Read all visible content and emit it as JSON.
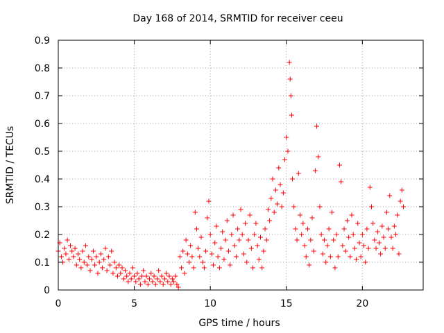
{
  "chart_data": {
    "type": "scatter",
    "title": "Day 168 of 2014, SRMTID for receiver ceeu",
    "xlabel": "GPS time / hours",
    "ylabel": "SRMTID / TECUs",
    "xlim": [
      0,
      24
    ],
    "ylim": [
      0,
      0.9
    ],
    "xticks": [
      0,
      5,
      10,
      15,
      20
    ],
    "xtick_labels": [
      "0",
      "5",
      "10",
      "15",
      "20"
    ],
    "yticks": [
      0,
      0.1,
      0.2,
      0.3,
      0.4,
      0.5,
      0.6,
      0.7,
      0.8,
      0.9
    ],
    "ytick_labels": [
      "0",
      "0.1",
      "0.2",
      "0.3",
      "0.4",
      "0.5",
      "0.6",
      "0.7",
      "0.8",
      "0.9"
    ],
    "grid": true,
    "marker": "+",
    "series": [
      {
        "name": "SRMTID",
        "color": "#ff0000",
        "points": [
          [
            0.0,
            0.14
          ],
          [
            0.1,
            0.17
          ],
          [
            0.2,
            0.12
          ],
          [
            0.3,
            0.1
          ],
          [
            0.4,
            0.15
          ],
          [
            0.5,
            0.13
          ],
          [
            0.6,
            0.18
          ],
          [
            0.7,
            0.11
          ],
          [
            0.8,
            0.16
          ],
          [
            0.9,
            0.14
          ],
          [
            1.0,
            0.12
          ],
          [
            1.1,
            0.15
          ],
          [
            1.2,
            0.09
          ],
          [
            1.3,
            0.13
          ],
          [
            1.4,
            0.11
          ],
          [
            1.5,
            0.08
          ],
          [
            1.6,
            0.14
          ],
          [
            1.7,
            0.1
          ],
          [
            1.8,
            0.16
          ],
          [
            1.9,
            0.09
          ],
          [
            2.0,
            0.12
          ],
          [
            2.1,
            0.07
          ],
          [
            2.2,
            0.11
          ],
          [
            2.3,
            0.14
          ],
          [
            2.4,
            0.09
          ],
          [
            2.5,
            0.12
          ],
          [
            2.6,
            0.06
          ],
          [
            2.7,
            0.1
          ],
          [
            2.8,
            0.13
          ],
          [
            2.9,
            0.08
          ],
          [
            3.0,
            0.11
          ],
          [
            3.1,
            0.15
          ],
          [
            3.2,
            0.07
          ],
          [
            3.3,
            0.12
          ],
          [
            3.4,
            0.09
          ],
          [
            3.5,
            0.14
          ],
          [
            3.6,
            0.06
          ],
          [
            3.7,
            0.1
          ],
          [
            3.8,
            0.08
          ],
          [
            3.9,
            0.05
          ],
          [
            4.0,
            0.09
          ],
          [
            4.1,
            0.06
          ],
          [
            4.2,
            0.08
          ],
          [
            4.3,
            0.04
          ],
          [
            4.4,
            0.07
          ],
          [
            4.5,
            0.05
          ],
          [
            4.6,
            0.03
          ],
          [
            4.7,
            0.06
          ],
          [
            4.8,
            0.04
          ],
          [
            4.9,
            0.08
          ],
          [
            5.0,
            0.05
          ],
          [
            5.1,
            0.03
          ],
          [
            5.2,
            0.06
          ],
          [
            5.3,
            0.04
          ],
          [
            5.4,
            0.02
          ],
          [
            5.5,
            0.05
          ],
          [
            5.6,
            0.07
          ],
          [
            5.7,
            0.03
          ],
          [
            5.8,
            0.05
          ],
          [
            5.9,
            0.02
          ],
          [
            6.0,
            0.04
          ],
          [
            6.1,
            0.06
          ],
          [
            6.2,
            0.03
          ],
          [
            6.3,
            0.05
          ],
          [
            6.4,
            0.02
          ],
          [
            6.5,
            0.04
          ],
          [
            6.6,
            0.07
          ],
          [
            6.7,
            0.03
          ],
          [
            6.8,
            0.05
          ],
          [
            6.9,
            0.02
          ],
          [
            7.0,
            0.04
          ],
          [
            7.1,
            0.06
          ],
          [
            7.2,
            0.03
          ],
          [
            7.3,
            0.05
          ],
          [
            7.4,
            0.02
          ],
          [
            7.5,
            0.04
          ],
          [
            7.6,
            0.03
          ],
          [
            7.7,
            0.05
          ],
          [
            7.8,
            0.02
          ],
          [
            7.9,
            0.01
          ],
          [
            8.0,
            0.12
          ],
          [
            8.1,
            0.08
          ],
          [
            8.2,
            0.14
          ],
          [
            8.3,
            0.06
          ],
          [
            8.4,
            0.18
          ],
          [
            8.5,
            0.13
          ],
          [
            8.6,
            0.1
          ],
          [
            8.7,
            0.16
          ],
          [
            8.8,
            0.12
          ],
          [
            8.9,
            0.08
          ],
          [
            9.0,
            0.28
          ],
          [
            9.1,
            0.22
          ],
          [
            9.2,
            0.15
          ],
          [
            9.3,
            0.12
          ],
          [
            9.4,
            0.19
          ],
          [
            9.5,
            0.1
          ],
          [
            9.6,
            0.08
          ],
          [
            9.7,
            0.14
          ],
          [
            9.8,
            0.26
          ],
          [
            9.9,
            0.32
          ],
          [
            10.0,
            0.2
          ],
          [
            10.1,
            0.13
          ],
          [
            10.2,
            0.09
          ],
          [
            10.3,
            0.17
          ],
          [
            10.4,
            0.23
          ],
          [
            10.5,
            0.12
          ],
          [
            10.6,
            0.08
          ],
          [
            10.7,
            0.15
          ],
          [
            10.8,
            0.21
          ],
          [
            10.9,
            0.11
          ],
          [
            11.0,
            0.18
          ],
          [
            11.1,
            0.25
          ],
          [
            11.2,
            0.14
          ],
          [
            11.3,
            0.09
          ],
          [
            11.4,
            0.2
          ],
          [
            11.5,
            0.27
          ],
          [
            11.6,
            0.16
          ],
          [
            11.7,
            0.12
          ],
          [
            11.8,
            0.22
          ],
          [
            11.9,
            0.18
          ],
          [
            12.0,
            0.29
          ],
          [
            12.1,
            0.2
          ],
          [
            12.2,
            0.13
          ],
          [
            12.3,
            0.24
          ],
          [
            12.4,
            0.1
          ],
          [
            12.5,
            0.18
          ],
          [
            12.6,
            0.27
          ],
          [
            12.7,
            0.15
          ],
          [
            12.8,
            0.08
          ],
          [
            12.9,
            0.2
          ],
          [
            13.0,
            0.24
          ],
          [
            13.1,
            0.16
          ],
          [
            13.2,
            0.11
          ],
          [
            13.3,
            0.19
          ],
          [
            13.4,
            0.08
          ],
          [
            13.5,
            0.14
          ],
          [
            13.6,
            0.22
          ],
          [
            13.7,
            0.18
          ],
          [
            13.8,
            0.29
          ],
          [
            13.9,
            0.25
          ],
          [
            14.0,
            0.33
          ],
          [
            14.1,
            0.4
          ],
          [
            14.2,
            0.28
          ],
          [
            14.3,
            0.36
          ],
          [
            14.4,
            0.31
          ],
          [
            14.5,
            0.44
          ],
          [
            14.6,
            0.38
          ],
          [
            14.7,
            0.3
          ],
          [
            14.8,
            0.35
          ],
          [
            14.9,
            0.47
          ],
          [
            15.0,
            0.55
          ],
          [
            15.1,
            0.5
          ],
          [
            15.2,
            0.82
          ],
          [
            15.25,
            0.76
          ],
          [
            15.3,
            0.7
          ],
          [
            15.35,
            0.63
          ],
          [
            15.4,
            0.4
          ],
          [
            15.5,
            0.3
          ],
          [
            15.6,
            0.22
          ],
          [
            15.7,
            0.18
          ],
          [
            15.8,
            0.42
          ],
          [
            15.9,
            0.27
          ],
          [
            16.0,
            0.2
          ],
          [
            16.1,
            0.24
          ],
          [
            16.2,
            0.16
          ],
          [
            16.3,
            0.12
          ],
          [
            16.4,
            0.22
          ],
          [
            16.5,
            0.09
          ],
          [
            16.6,
            0.18
          ],
          [
            16.7,
            0.26
          ],
          [
            16.8,
            0.14
          ],
          [
            16.9,
            0.43
          ],
          [
            17.0,
            0.59
          ],
          [
            17.1,
            0.48
          ],
          [
            17.2,
            0.3
          ],
          [
            17.3,
            0.2
          ],
          [
            17.4,
            0.13
          ],
          [
            17.5,
            0.18
          ],
          [
            17.6,
            0.1
          ],
          [
            17.7,
            0.16
          ],
          [
            17.8,
            0.22
          ],
          [
            17.9,
            0.12
          ],
          [
            18.0,
            0.28
          ],
          [
            18.1,
            0.18
          ],
          [
            18.2,
            0.08
          ],
          [
            18.3,
            0.2
          ],
          [
            18.4,
            0.12
          ],
          [
            18.5,
            0.45
          ],
          [
            18.6,
            0.39
          ],
          [
            18.7,
            0.16
          ],
          [
            18.8,
            0.22
          ],
          [
            18.9,
            0.14
          ],
          [
            19.0,
            0.25
          ],
          [
            19.1,
            0.19
          ],
          [
            19.2,
            0.12
          ],
          [
            19.3,
            0.27
          ],
          [
            19.4,
            0.2
          ],
          [
            19.5,
            0.15
          ],
          [
            19.6,
            0.11
          ],
          [
            19.7,
            0.24
          ],
          [
            19.8,
            0.17
          ],
          [
            19.9,
            0.12
          ],
          [
            20.0,
            0.2
          ],
          [
            20.1,
            0.16
          ],
          [
            20.2,
            0.1
          ],
          [
            20.3,
            0.22
          ],
          [
            20.4,
            0.15
          ],
          [
            20.5,
            0.37
          ],
          [
            20.6,
            0.3
          ],
          [
            20.7,
            0.24
          ],
          [
            20.8,
            0.18
          ],
          [
            20.9,
            0.15
          ],
          [
            21.0,
            0.21
          ],
          [
            21.1,
            0.17
          ],
          [
            21.2,
            0.13
          ],
          [
            21.3,
            0.23
          ],
          [
            21.4,
            0.19
          ],
          [
            21.5,
            0.15
          ],
          [
            21.6,
            0.28
          ],
          [
            21.7,
            0.22
          ],
          [
            21.8,
            0.34
          ],
          [
            21.9,
            0.19
          ],
          [
            22.0,
            0.15
          ],
          [
            22.1,
            0.23
          ],
          [
            22.2,
            0.2
          ],
          [
            22.3,
            0.27
          ],
          [
            22.4,
            0.13
          ],
          [
            22.5,
            0.32
          ],
          [
            22.6,
            0.36
          ],
          [
            22.7,
            0.3
          ]
        ]
      }
    ]
  }
}
